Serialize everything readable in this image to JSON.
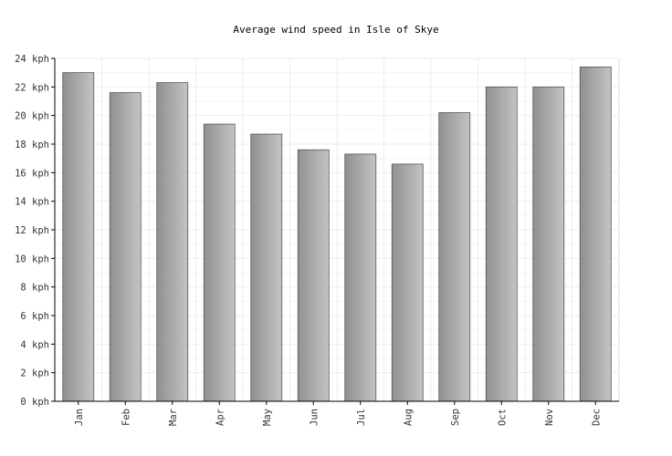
{
  "chart_data": {
    "type": "bar",
    "title": "Average wind speed in Isle of Skye",
    "xlabel": "",
    "ylabel": "",
    "unit": "kph",
    "categories": [
      "Jan",
      "Feb",
      "Mar",
      "Apr",
      "May",
      "Jun",
      "Jul",
      "Aug",
      "Sep",
      "Oct",
      "Nov",
      "Dec"
    ],
    "values": [
      23.0,
      21.6,
      22.3,
      19.4,
      18.7,
      17.6,
      17.3,
      16.6,
      20.2,
      22.0,
      22.0,
      23.4
    ],
    "ylim": [
      0,
      24
    ],
    "yticks": [
      0,
      2,
      4,
      6,
      8,
      10,
      12,
      14,
      16,
      18,
      20,
      22,
      24
    ],
    "ytick_labels": [
      "0 kph",
      "2 kph",
      "4 kph",
      "6 kph",
      "8 kph",
      "10 kph",
      "12 kph",
      "14 kph",
      "16 kph",
      "18 kph",
      "20 kph",
      "22 kph",
      "24 kph"
    ],
    "grid": true,
    "legend": "none",
    "bar_color": "#a8a8a8",
    "bar_border_color": "#555555"
  }
}
